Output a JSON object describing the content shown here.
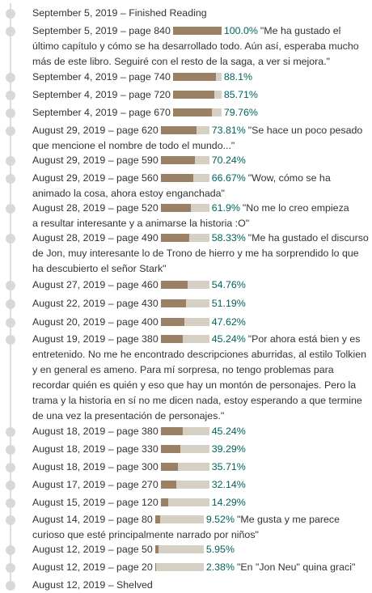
{
  "colors": {
    "rail": "#dddddd",
    "dot": "#d8d8d8",
    "bar_track": "#d6d0c4",
    "bar_fill": "#9a8065",
    "percent_text": "#00635d",
    "text": "#333333"
  },
  "entries": [
    {
      "date": "September 5, 2019",
      "event": "Finished Reading"
    },
    {
      "date": "September 5, 2019",
      "page": "page 840",
      "progress": 1.0,
      "percent": "100.0%",
      "comment": "\"Me ha gustado el último capítulo y cómo se ha desarrollado todo. Aún así, esperaba mucho más de este libro. Seguiré con el resto de la saga, a ver si mejora.\""
    },
    {
      "date": "September 4, 2019",
      "page": "page 740",
      "progress": 0.881,
      "percent": "88.1%"
    },
    {
      "date": "September 4, 2019",
      "page": "page 720",
      "progress": 0.8571,
      "percent": "85.71%"
    },
    {
      "date": "September 4, 2019",
      "page": "page 670",
      "progress": 0.7976,
      "percent": "79.76%"
    },
    {
      "date": "August 29, 2019",
      "page": "page 620",
      "progress": 0.7381,
      "percent": "73.81%",
      "comment": "\"Se hace un poco pesado que mencione el nombre de todo el mundo...\""
    },
    {
      "date": "August 29, 2019",
      "page": "page 590",
      "progress": 0.7024,
      "percent": "70.24%"
    },
    {
      "date": "August 29, 2019",
      "page": "page 560",
      "progress": 0.6667,
      "percent": "66.67%",
      "comment": "\"Wow, cómo se ha animado la cosa, ahora estoy enganchada\""
    },
    {
      "date": "August 28, 2019",
      "page": "page 520",
      "progress": 0.619,
      "percent": "61.9%",
      "comment": "\"No me lo creo empieza a resultar interesante y a animarse la historia :O\""
    },
    {
      "date": "August 28, 2019",
      "page": "page 490",
      "progress": 0.5833,
      "percent": "58.33%",
      "comment": "\"Me ha gustado el discurso de Jon, muy interesante lo de Trono de hierro y me ha sorprendido lo que ha descubierto el señor Stark\""
    },
    {
      "date": "August 27, 2019",
      "page": "page 460",
      "progress": 0.5476,
      "percent": "54.76%"
    },
    {
      "date": "August 22, 2019",
      "page": "page 430",
      "progress": 0.5119,
      "percent": "51.19%"
    },
    {
      "date": "August 20, 2019",
      "page": "page 400",
      "progress": 0.4762,
      "percent": "47.62%"
    },
    {
      "date": "August 19, 2019",
      "page": "page 380",
      "progress": 0.4524,
      "percent": "45.24%",
      "comment": "\"Por ahora está bien y es entretenido. No me he encontrado descripciones aburridas, al estilo Tolkien y en general es ameno. Para mí sorpresa, no tengo problemas para recordar quién es quién y eso que hay un montón de personajes. Pero la trama y la historia en sí no me dicen nada, estoy esperando a que termine de una vez la presentación de personajes.\""
    },
    {
      "date": "August 18, 2019",
      "page": "page 380",
      "progress": 0.4524,
      "percent": "45.24%"
    },
    {
      "date": "August 18, 2019",
      "page": "page 330",
      "progress": 0.3929,
      "percent": "39.29%"
    },
    {
      "date": "August 18, 2019",
      "page": "page 300",
      "progress": 0.3571,
      "percent": "35.71%"
    },
    {
      "date": "August 17, 2019",
      "page": "page 270",
      "progress": 0.3214,
      "percent": "32.14%"
    },
    {
      "date": "August 15, 2019",
      "page": "page 120",
      "progress": 0.1429,
      "percent": "14.29%"
    },
    {
      "date": "August 14, 2019",
      "page": "page 80",
      "progress": 0.0952,
      "percent": "9.52%",
      "comment": "\"Me gusta y me parece curioso que esté principalmente narrado por niños\""
    },
    {
      "date": "August 12, 2019",
      "page": "page 50",
      "progress": 0.0595,
      "percent": "5.95%"
    },
    {
      "date": "August 12, 2019",
      "page": "page 20",
      "progress": 0.0238,
      "percent": "2.38%",
      "comment": "\"En \"Jon Neu\" quina graci\""
    },
    {
      "date": "August 12, 2019",
      "event": "Shelved"
    }
  ]
}
